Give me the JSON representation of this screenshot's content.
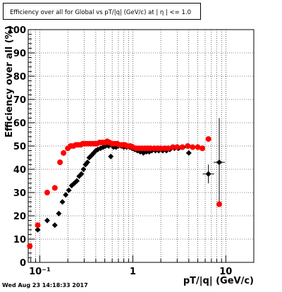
{
  "chart_data": {
    "type": "scatter",
    "title": "Efficiency over all for Global vs pT/|q| (GeV/c) at |  η  | <= 1.0",
    "xlabel": "pT/|q| (GeV/c)",
    "ylabel": "Efficiency over all (%)",
    "x_scale": "log",
    "xlim": [
      0.075,
      20
    ],
    "ylim": [
      0,
      100
    ],
    "grid": true,
    "y_ticks": [
      0,
      10,
      20,
      30,
      40,
      50,
      60,
      70,
      80,
      90,
      100
    ],
    "y_tick_labels": [
      "0",
      "10",
      "20",
      "30",
      "40",
      "50",
      "60",
      "70",
      "80",
      "90",
      "100"
    ],
    "x_ticks": [
      0.1,
      1,
      10
    ],
    "x_tick_labels": [
      "10⁻¹",
      "1",
      "10"
    ],
    "series": [
      {
        "color": "#000000",
        "x": [
          0.095,
          0.12,
          0.145,
          0.16,
          0.175,
          0.19,
          0.205,
          0.22,
          0.235,
          0.25,
          0.265,
          0.28,
          0.295,
          0.31,
          0.325,
          0.34,
          0.36,
          0.38,
          0.4,
          0.42,
          0.45,
          0.48,
          0.51,
          0.55,
          0.58,
          0.62,
          0.66,
          0.7,
          0.75,
          0.8,
          0.86,
          0.92,
          0.98,
          1.05,
          1.12,
          1.2,
          1.3,
          1.4,
          1.5,
          1.6,
          1.75,
          1.9,
          2.1,
          2.3,
          2.5,
          2.8,
          3.1,
          3.5,
          4.0,
          6.5,
          8.5
        ],
        "y": [
          14,
          18,
          16,
          21,
          26,
          29,
          31,
          33,
          34,
          35,
          37,
          38,
          40,
          42,
          43,
          45,
          46,
          47,
          48,
          48.5,
          49,
          49.5,
          50,
          50,
          45.5,
          49.5,
          49.5,
          50,
          50,
          49.5,
          49.5,
          49.5,
          49,
          48.5,
          48,
          47.5,
          47,
          47.5,
          47.5,
          48,
          48,
          48,
          48,
          48,
          48.5,
          49,
          49,
          49.5,
          47,
          38,
          43
        ],
        "yerr": [
          1,
          1,
          1,
          1,
          1,
          1,
          1,
          1,
          1,
          1,
          1,
          1,
          1,
          1,
          1,
          1,
          1,
          1,
          1,
          1,
          1,
          1,
          1,
          1,
          1,
          1,
          1,
          1,
          1,
          1,
          1,
          1,
          1,
          1,
          1,
          1,
          1,
          1,
          1,
          1,
          1,
          1,
          1,
          1,
          1,
          1,
          1,
          1,
          1.5,
          4,
          19
        ]
      },
      {
        "color": "#ff0000",
        "x": [
          0.078,
          0.095,
          0.12,
          0.145,
          0.165,
          0.18,
          0.2,
          0.215,
          0.23,
          0.245,
          0.26,
          0.275,
          0.29,
          0.31,
          0.33,
          0.35,
          0.37,
          0.39,
          0.41,
          0.44,
          0.47,
          0.5,
          0.53,
          0.56,
          0.6,
          0.64,
          0.68,
          0.72,
          0.77,
          0.82,
          0.88,
          0.94,
          1.0,
          1.08,
          1.16,
          1.25,
          1.35,
          1.45,
          1.55,
          1.7,
          1.85,
          2.0,
          2.2,
          2.4,
          2.7,
          3.0,
          3.4,
          3.9,
          4.4,
          5.0,
          5.6,
          6.5,
          8.5
        ],
        "y": [
          7,
          16,
          30,
          32,
          43,
          47,
          49,
          50,
          50,
          50.5,
          50.5,
          50.5,
          51,
          51,
          51,
          51,
          51,
          51,
          51,
          51.5,
          51.5,
          51.5,
          52,
          51.5,
          51,
          51,
          51,
          50.5,
          50.5,
          50.5,
          50,
          50,
          49.5,
          49,
          49,
          49,
          49,
          49,
          49,
          49,
          49,
          49,
          49,
          49,
          49.5,
          49.5,
          49.5,
          50,
          49.5,
          49.5,
          49,
          53,
          25
        ]
      }
    ]
  },
  "footer": {
    "datestamp": "Wed Aug 23 14:18:33 2017"
  }
}
